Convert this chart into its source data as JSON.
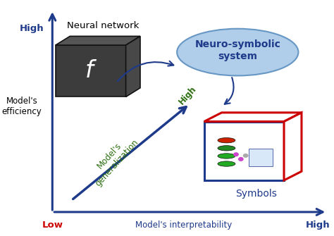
{
  "bg_color": "#ffffff",
  "axis_color": "#1e3a8a",
  "y_label": "Model's\nefficiency",
  "x_label": "Model's interpretability",
  "low_label_x": "Low",
  "high_label_x": "High",
  "high_label_y_top": "High",
  "neural_network_label": "Neural network",
  "neuro_symbolic_label": "Neuro-symbolic\nsystem",
  "symbols_label": "Symbols",
  "generalization_label": "Model's\ngeneralization",
  "generalization_high": "High",
  "axis_label_color": "#1e3a8a",
  "low_color": "#cc0000",
  "green_color": "#2d6e10",
  "ellipse_face": "#a8c8e8",
  "ellipse_edge": "#5b8fbf",
  "cube_front": "#3c3c3c",
  "cube_top": "#555555",
  "cube_right": "#484848",
  "sym_edge_blue": "#1e3a8a",
  "sym_edge_red": "#cc0000",
  "ylabel_color": "#000000"
}
